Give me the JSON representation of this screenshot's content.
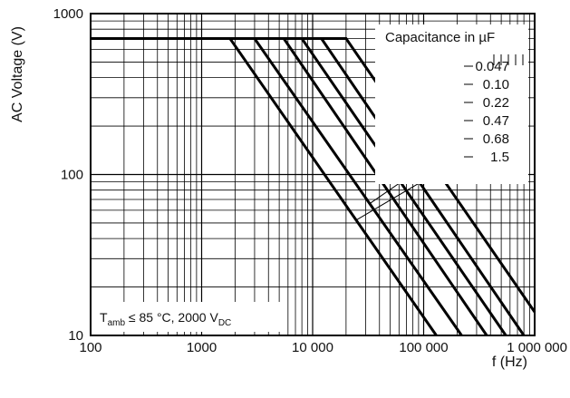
{
  "chart_data": {
    "type": "line",
    "x_scale": "log",
    "y_scale": "log",
    "xlim": [
      100,
      1000000
    ],
    "ylim": [
      10,
      1000
    ],
    "xlabel": "f (Hz)",
    "ylabel": "AC Voltage (V)",
    "x_ticks": [
      "100",
      "1000",
      "10 000",
      "100 000",
      "1 000 000"
    ],
    "y_ticks": [
      "10",
      "100",
      "1000"
    ],
    "grid": true,
    "legend_title": "Capacitance in µF",
    "annotation": {
      "t_main": "T",
      "t_sub": "amb",
      "condition_text": " ≤ 85 °C, 2000 V",
      "v_sub": "DC"
    },
    "series": [
      {
        "name": "0.047",
        "points": [
          [
            100,
            700
          ],
          [
            20000,
            700
          ],
          [
            1000000,
            14
          ]
        ]
      },
      {
        "name": "0.10",
        "points": [
          [
            100,
            700
          ],
          [
            12000,
            700
          ],
          [
            800000,
            10
          ]
        ]
      },
      {
        "name": "0.22",
        "points": [
          [
            100,
            700
          ],
          [
            8000,
            700
          ],
          [
            550000,
            10
          ]
        ]
      },
      {
        "name": "0.47",
        "points": [
          [
            100,
            700
          ],
          [
            5500,
            700
          ],
          [
            370000,
            10
          ]
        ]
      },
      {
        "name": "0.68",
        "points": [
          [
            100,
            700
          ],
          [
            3000,
            700
          ],
          [
            220000,
            10
          ]
        ]
      },
      {
        "name": "1.5",
        "points": [
          [
            100,
            700
          ],
          [
            1800,
            700
          ],
          [
            130000,
            10
          ]
        ]
      }
    ]
  }
}
